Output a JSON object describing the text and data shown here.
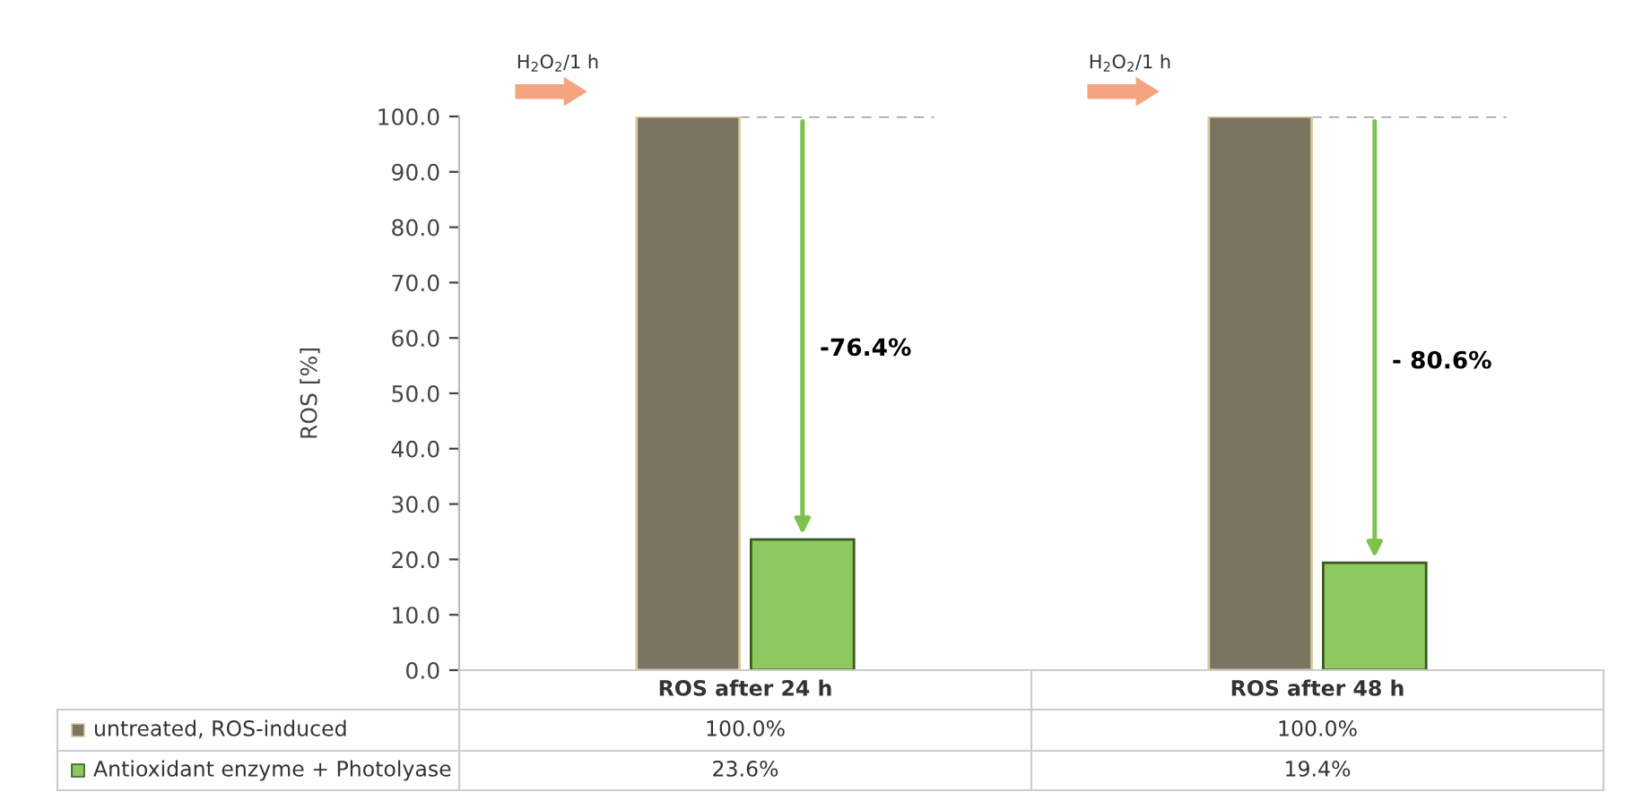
{
  "chart_data": {
    "type": "bar",
    "ylabel": "ROS [%]",
    "categories": [
      "ROS after 24 h",
      "ROS after 48 h"
    ],
    "series": [
      {
        "name": "untreated, ROS-induced",
        "color": "#7a7560",
        "values": [
          100,
          100
        ],
        "value_labels": [
          "100.0%",
          "100.0%"
        ]
      },
      {
        "name": "Antioxidant enzyme + Photolyase",
        "color": "#8dc860",
        "values": [
          23.6,
          19.4
        ],
        "value_labels": [
          "23.6%",
          "19.4%"
        ]
      }
    ],
    "ylim": [
      0,
      100
    ],
    "yticks": [
      {
        "value": 0,
        "label": "0.0"
      },
      {
        "value": 10,
        "label": "10.0"
      },
      {
        "value": 20,
        "label": "20.0"
      },
      {
        "value": 30,
        "label": "30.0"
      },
      {
        "value": 40,
        "label": "40.0"
      },
      {
        "value": 50,
        "label": "50.0"
      },
      {
        "value": 60,
        "label": "60.0"
      },
      {
        "value": 70,
        "label": "70.0"
      },
      {
        "value": 80,
        "label": "80.0"
      },
      {
        "value": 90,
        "label": "90.0"
      },
      {
        "value": 100,
        "label": "100.0"
      }
    ],
    "ref_lines": [
      {
        "axis": "y",
        "value": 100,
        "color": "#999999",
        "line_style": "dashed"
      }
    ],
    "annotations": [
      "H$_{2}$O$_{2}$/1 h",
      "-76.4%",
      "H$_{2}$O$_{2}$/1 h",
      "- 80.6%"
    ],
    "grid": false,
    "legend": "bottom"
  }
}
